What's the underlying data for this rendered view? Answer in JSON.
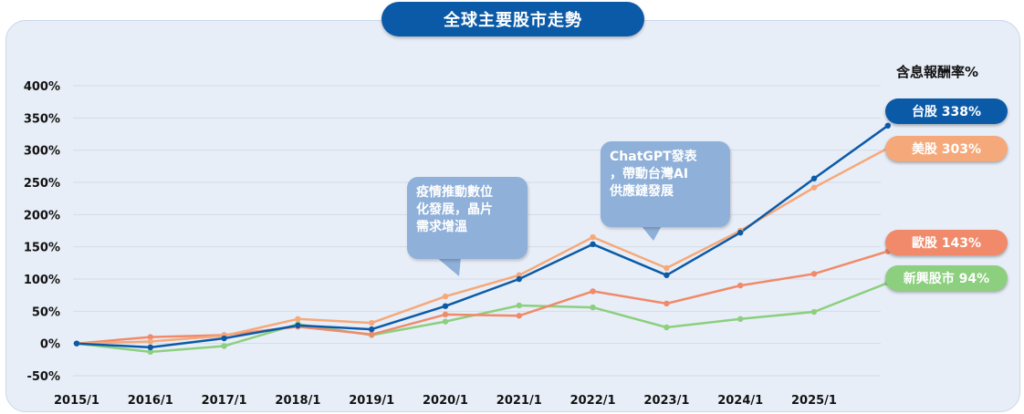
{
  "title": "全球主要股市走勢",
  "legend_title": "含息報酬率%",
  "legend": [
    {
      "label": "台股 338%",
      "color": "#0b5aa7"
    },
    {
      "label": "美股 303%",
      "color": "#f5a97a"
    },
    {
      "label": "歐股 143%",
      "color": "#f08a6a"
    },
    {
      "label": "新興股市 94%",
      "color": "#8ccf7e"
    }
  ],
  "annotations": [
    {
      "text": "疫情推動數位\n化發展，晶片\n需求增溫"
    },
    {
      "text": "ChatGPT發表\n，帶動台灣AI\n供應鏈發展"
    }
  ],
  "chart_data": {
    "type": "line",
    "categories": [
      "2015/1",
      "2016/1",
      "2017/1",
      "2018/1",
      "2019/1",
      "2020/1",
      "2021/1",
      "2022/1",
      "2023/1",
      "2024/1",
      "2025/1",
      ""
    ],
    "yticks": [
      "400%",
      "350%",
      "300%",
      "250%",
      "200%",
      "150%",
      "100%",
      "50%",
      "0%",
      "-50%"
    ],
    "ylim": [
      -50,
      400
    ],
    "grid": true,
    "series": [
      {
        "name": "台股",
        "color": "#0b5aa7",
        "values": [
          0,
          -6,
          8,
          28,
          22,
          58,
          100,
          154,
          106,
          172,
          256,
          338
        ]
      },
      {
        "name": "美股",
        "color": "#f5a97a",
        "values": [
          0,
          3,
          12,
          38,
          32,
          73,
          106,
          165,
          117,
          175,
          242,
          303
        ]
      },
      {
        "name": "歐股",
        "color": "#f08a6a",
        "values": [
          0,
          10,
          13,
          26,
          14,
          45,
          43,
          81,
          62,
          90,
          108,
          143
        ]
      },
      {
        "name": "新興股市",
        "color": "#8ccf7e",
        "values": [
          0,
          -13,
          -4,
          30,
          13,
          34,
          59,
          56,
          25,
          38,
          49,
          94
        ]
      }
    ]
  }
}
